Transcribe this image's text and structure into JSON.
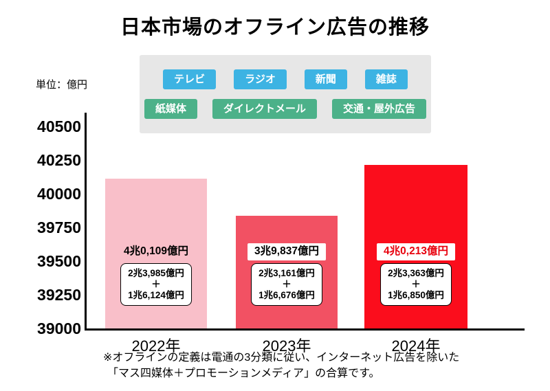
{
  "title": "日本市場のオフライン広告の推移",
  "unit_label": "単位：億円",
  "legend": {
    "blue_color": "#3db3e3",
    "green_color": "#4cb189",
    "media_blue": [
      "テレビ",
      "ラジオ",
      "新聞",
      "雑誌"
    ],
    "media_green": [
      "紙媒体",
      "ダイレクトメール",
      "交通・屋外広告"
    ]
  },
  "chart_data": {
    "type": "bar",
    "title": "日本市場のオフライン広告の推移",
    "ylabel": "単位：億円",
    "xlabel": "",
    "categories": [
      "2022年",
      "2023年",
      "2024年"
    ],
    "values": [
      40109,
      39837,
      40213
    ],
    "ylim": [
      39000,
      40600
    ],
    "yticks": [
      40500,
      40250,
      40000,
      39750,
      39500,
      39250,
      39000
    ],
    "grid": false,
    "legend_position": "top",
    "bar_colors": [
      "#f9bfc9",
      "#f25163",
      "#fb0d1c"
    ],
    "labels": [
      {
        "total": "4兆0,109億円",
        "part1": "2兆3,985億円",
        "plus": "＋",
        "part2": "1兆6,124億円",
        "total_bg": "transparent",
        "total_color": "#000000"
      },
      {
        "total": "3兆9,837億円",
        "part1": "2兆3,161億円",
        "plus": "＋",
        "part2": "1兆6,676億円",
        "total_bg": "#ffffff",
        "total_color": "#000000"
      },
      {
        "total": "4兆0,213億円",
        "part1": "2兆3,363億円",
        "plus": "＋",
        "part2": "1兆6,850億円",
        "total_bg": "#ffffff",
        "total_color": "#e8000d"
      }
    ]
  },
  "footnote": {
    "line1": "※オフラインの定義は電通の3分類に従い、インターネット広告を除いた",
    "line2": "「マス四媒体＋プロモーションメディア」の合算です。"
  }
}
